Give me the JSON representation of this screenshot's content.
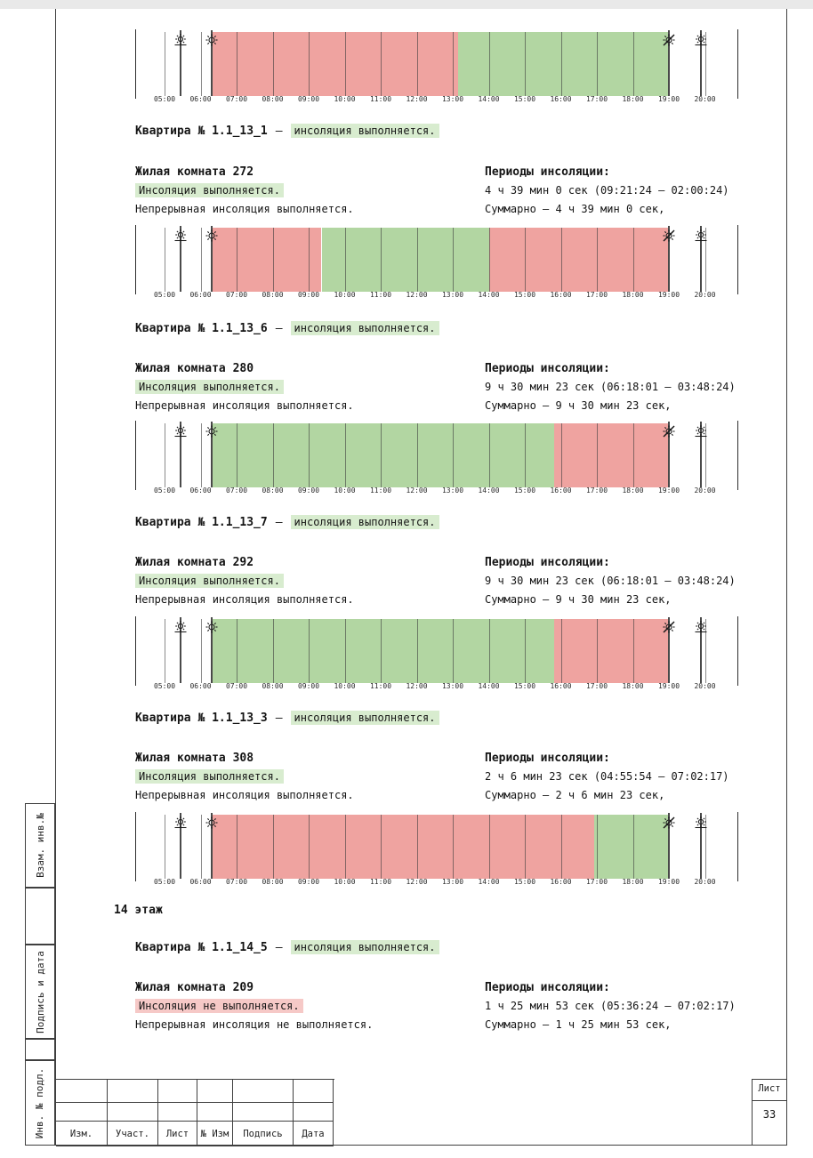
{
  "colors": {
    "insolation_green": "#b2d6a2",
    "no_insolation_red": "#efa3a0",
    "chip_green": "#d8eccf",
    "chip_red": "#f6c9c7"
  },
  "floor_heading": "14 этаж",
  "sections": [
    {
      "apartment": "Квартира № 1.1_13_1",
      "dash": "—",
      "apartment_status": "инсоляция выполняется.",
      "apartment_status_type": "ok",
      "room": "Жилая комната 272",
      "room_status": "Инсоляция выполняется.",
      "room_status_type": "ok",
      "continuous_line": "Непрерывная инсоляция выполняется.",
      "periods_title": "Периоды инсоляции:",
      "period_line": "4 ч 39 мин 0 сек (09:21:24 – 02:00:24)",
      "total_line": "Суммарно – 4 ч 39 мин 0 сек,"
    },
    {
      "apartment": "Квартира № 1.1_13_6",
      "dash": "—",
      "apartment_status": "инсоляция выполняется.",
      "apartment_status_type": "ok",
      "room": "Жилая комната 280",
      "room_status": "Инсоляция выполняется.",
      "room_status_type": "ok",
      "continuous_line": "Непрерывная инсоляция выполняется.",
      "periods_title": "Периоды инсоляции:",
      "period_line": "9 ч 30 мин 23 сек (06:18:01 – 03:48:24)",
      "total_line": "Суммарно – 9 ч 30 мин 23 сек,"
    },
    {
      "apartment": "Квартира № 1.1_13_7",
      "dash": "—",
      "apartment_status": "инсоляция выполняется.",
      "apartment_status_type": "ok",
      "room": "Жилая комната 292",
      "room_status": "Инсоляция выполняется.",
      "room_status_type": "ok",
      "continuous_line": "Непрерывная инсоляция выполняется.",
      "periods_title": "Периоды инсоляции:",
      "period_line": "9 ч 30 мин 23 сек (06:18:01 – 03:48:24)",
      "total_line": "Суммарно – 9 ч 30 мин 23 сек,"
    },
    {
      "apartment": "Квартира № 1.1_13_3",
      "dash": "—",
      "apartment_status": "инсоляция выполняется.",
      "apartment_status_type": "ok",
      "room": "Жилая комната 308",
      "room_status": "Инсоляция выполняется.",
      "room_status_type": "ok",
      "continuous_line": "Непрерывная инсоляция выполняется.",
      "periods_title": "Периоды инсоляции:",
      "period_line": "2 ч 6 мин 23 сек (04:55:54 – 07:02:17)",
      "total_line": "Суммарно – 2 ч 6 мин 23 сек,"
    },
    {
      "apartment": "Квартира № 1.1_14_5",
      "dash": "—",
      "apartment_status": "инсоляция выполняется.",
      "apartment_status_type": "ok",
      "room": "Жилая комната 209",
      "room_status": "Инсоляция не выполняется.",
      "room_status_type": "fail",
      "continuous_line": "Непрерывная инсоляция не выполняется.",
      "periods_title": "Периоды инсоляции:",
      "period_line": "1 ч 25 мин 53 сек (05:36:24 – 07:02:17)",
      "total_line": "Суммарно – 1 ч 25 мин 53 сек,"
    }
  ],
  "chart_data": {
    "type": "timeline",
    "title": "Инсоляционные диаграммы (зелёный — инсоляция выполняется, красный — не выполняется)",
    "axis_start": 5,
    "axis_end": 20,
    "x_ticks": [
      "05:00",
      "06:00",
      "07:00",
      "08:00",
      "09:00",
      "10:00",
      "11:00",
      "12:00",
      "13:00",
      "14:00",
      "15:00",
      "16:00",
      "17:00",
      "18:00",
      "19:00",
      "20:00"
    ],
    "daylight": {
      "from": 6.3,
      "to": 19.0
    },
    "charts": [
      {
        "segments": [
          {
            "from": 6.3,
            "to": 13.15,
            "status": "no_insolation"
          },
          {
            "from": 13.15,
            "to": 19.0,
            "status": "insolation"
          }
        ],
        "icons": [
          {
            "time": 5.45,
            "name": "sunrise-icon"
          },
          {
            "time": 6.3,
            "name": "sun-icon"
          },
          {
            "time": 19.0,
            "name": "sun-crossed-icon"
          },
          {
            "time": 19.9,
            "name": "sunset-icon"
          }
        ]
      },
      {
        "segments": [
          {
            "from": 6.3,
            "to": 9.36,
            "status": "no_insolation"
          },
          {
            "from": 9.36,
            "to": 14.01,
            "status": "insolation"
          },
          {
            "from": 14.01,
            "to": 19.0,
            "status": "no_insolation"
          }
        ],
        "icons": [
          {
            "time": 5.45,
            "name": "sunrise-icon"
          },
          {
            "time": 6.3,
            "name": "sun-icon"
          },
          {
            "time": 19.0,
            "name": "sun-crossed-icon"
          },
          {
            "time": 19.9,
            "name": "sunset-icon"
          }
        ]
      },
      {
        "segments": [
          {
            "from": 6.3,
            "to": 15.81,
            "status": "insolation"
          },
          {
            "from": 15.81,
            "to": 19.0,
            "status": "no_insolation"
          }
        ],
        "icons": [
          {
            "time": 5.45,
            "name": "sunrise-icon"
          },
          {
            "time": 6.3,
            "name": "sun-icon"
          },
          {
            "time": 19.0,
            "name": "sun-crossed-icon"
          },
          {
            "time": 19.9,
            "name": "sunset-icon"
          }
        ]
      },
      {
        "segments": [
          {
            "from": 6.3,
            "to": 15.81,
            "status": "insolation"
          },
          {
            "from": 15.81,
            "to": 19.0,
            "status": "no_insolation"
          }
        ],
        "icons": [
          {
            "time": 5.45,
            "name": "sunrise-icon"
          },
          {
            "time": 6.3,
            "name": "sun-icon"
          },
          {
            "time": 19.0,
            "name": "sun-crossed-icon"
          },
          {
            "time": 19.9,
            "name": "sunset-icon"
          }
        ]
      },
      {
        "segments": [
          {
            "from": 6.3,
            "to": 16.93,
            "status": "no_insolation"
          },
          {
            "from": 16.93,
            "to": 19.0,
            "status": "insolation"
          }
        ],
        "icons": [
          {
            "time": 5.45,
            "name": "sunrise-icon"
          },
          {
            "time": 6.3,
            "name": "sun-icon"
          },
          {
            "time": 19.0,
            "name": "sun-crossed-icon"
          },
          {
            "time": 19.9,
            "name": "sunset-icon"
          }
        ]
      }
    ]
  },
  "frame": {
    "sidebar_labels": [
      "Взам. инв.№",
      "Подпись и дата",
      "Инв. № подл."
    ],
    "title_block": {
      "columns": [
        "Изм.",
        "Участ.",
        "Лист",
        "№ Изм",
        "Подпись",
        "Дата"
      ]
    },
    "sheet": {
      "label": "Лист",
      "number": "33"
    }
  }
}
